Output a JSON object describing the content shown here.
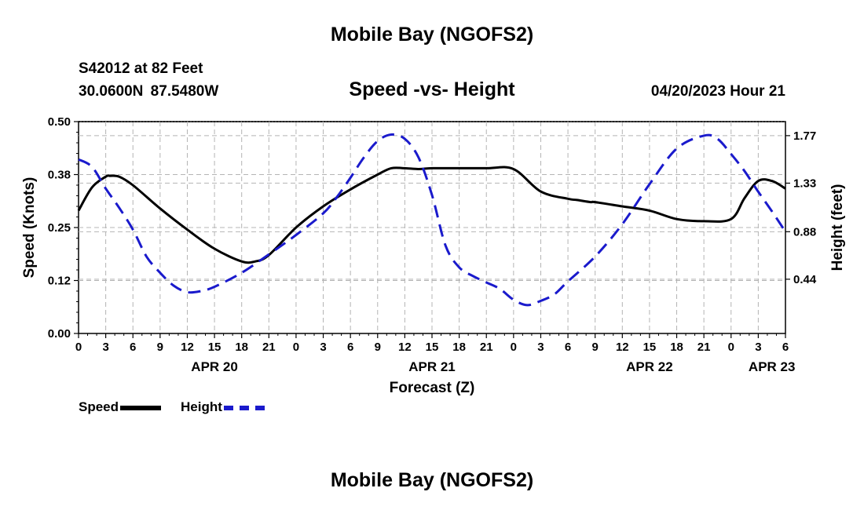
{
  "header": {
    "title": "Mobile Bay (NGOFS2)",
    "station": "S42012 at 82 Feet",
    "coordinates": "30.0600N  87.5480W",
    "subtitle": "Speed -vs- Height",
    "run": "04/20/2023 Hour 21"
  },
  "footer": {
    "title": "Mobile Bay (NGOFS2)"
  },
  "legend": {
    "speed_label": "Speed",
    "height_label": "Height"
  },
  "colors": {
    "speed": "#000000",
    "height": "#1a1acc",
    "grid": "#b4b4b4"
  },
  "chart_data": {
    "type": "line",
    "title": "Speed -vs- Height",
    "xlabel": "Forecast (Z)",
    "ylabel": "Speed (Knots)",
    "y2label": "Height (feet)",
    "x_range_hours": [
      0,
      78
    ],
    "x_ticks": [
      0,
      3,
      6,
      9,
      12,
      15,
      18,
      21,
      24,
      27,
      30,
      33,
      36,
      39,
      42,
      45,
      48,
      51,
      54,
      57,
      60,
      63,
      66,
      69,
      72,
      75,
      78
    ],
    "x_tick_labels": [
      "0",
      "3",
      "6",
      "9",
      "12",
      "15",
      "18",
      "21",
      "0",
      "3",
      "6",
      "9",
      "12",
      "15",
      "18",
      "21",
      "0",
      "3",
      "6",
      "9",
      "12",
      "15",
      "18",
      "21",
      "0",
      "3",
      "6"
    ],
    "date_labels": [
      {
        "hour": 15,
        "label": "APR 20"
      },
      {
        "hour": 39,
        "label": "APR 21"
      },
      {
        "hour": 63,
        "label": "APR 22"
      },
      {
        "hour": 76.5,
        "label": "APR 23"
      }
    ],
    "ylim": [
      0,
      0.5
    ],
    "y_ticks": [
      0.0,
      0.125,
      0.25,
      0.375,
      0.5
    ],
    "y_tick_labels": [
      "0.00",
      "0.12",
      "0.25",
      "0.38",
      "0.50"
    ],
    "y2lim": [
      -0.0625,
      1.9
    ],
    "y2_ticks": [
      0.44,
      0.88,
      1.33,
      1.77
    ],
    "y2_tick_labels": [
      "0.44",
      "0.88",
      "1.33",
      "1.77"
    ],
    "series": [
      {
        "name": "Speed",
        "axis": "left",
        "style": "solid",
        "x": [
          0,
          1.5,
          3,
          3.5,
          4.5,
          6,
          9,
          12,
          15,
          18,
          19.5,
          21,
          24,
          27,
          30,
          33,
          34.5,
          36,
          37.5,
          39,
          42,
          45,
          48,
          51,
          54,
          55,
          56.5,
          57,
          60,
          63,
          66,
          69,
          72,
          73.5,
          75,
          76.5,
          78
        ],
        "values": [
          0.29,
          0.345,
          0.37,
          0.372,
          0.37,
          0.35,
          0.295,
          0.245,
          0.2,
          0.17,
          0.17,
          0.185,
          0.25,
          0.3,
          0.34,
          0.375,
          0.39,
          0.39,
          0.388,
          0.39,
          0.39,
          0.39,
          0.388,
          0.335,
          0.318,
          0.315,
          0.31,
          0.31,
          0.3,
          0.29,
          0.27,
          0.265,
          0.27,
          0.32,
          0.36,
          0.36,
          0.342
        ]
      },
      {
        "name": "Height",
        "axis": "right",
        "style": "dashed",
        "x": [
          0,
          1.5,
          3,
          4.5,
          6,
          7.5,
          9,
          10.5,
          12,
          13.5,
          15,
          18,
          21,
          24,
          27,
          28.5,
          30,
          31.5,
          33,
          34.5,
          36,
          37.5,
          39,
          40.5,
          42,
          43.5,
          45,
          46.5,
          48,
          49.5,
          51,
          52.5,
          54,
          57,
          60,
          63,
          66,
          69,
          70.5,
          72,
          73.5,
          75,
          76.5,
          78
        ],
        "values": [
          1.55,
          1.48,
          1.28,
          1.1,
          0.9,
          0.65,
          0.5,
          0.38,
          0.32,
          0.33,
          0.37,
          0.5,
          0.67,
          0.85,
          1.05,
          1.2,
          1.38,
          1.57,
          1.72,
          1.78,
          1.74,
          1.57,
          1.22,
          0.75,
          0.55,
          0.47,
          0.41,
          0.35,
          0.25,
          0.2,
          0.24,
          0.3,
          0.42,
          0.65,
          0.95,
          1.32,
          1.65,
          1.77,
          1.74,
          1.6,
          1.44,
          1.25,
          1.07,
          0.88
        ]
      }
    ]
  }
}
